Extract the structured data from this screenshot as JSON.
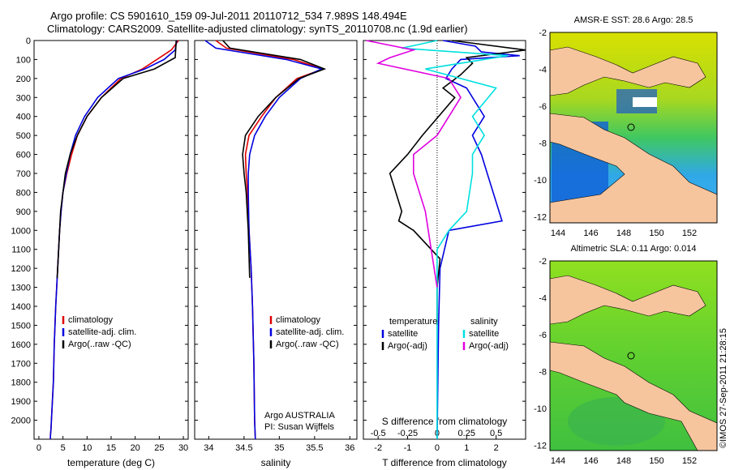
{
  "header": {
    "line1": "Argo profile: CS 5901610_159 09-Jul-2011 20110712_534 7.989S 148.494E",
    "line2": "Climatology: CARS2009. Satellite-adjusted climatology: synTS_20110708.nc (1.9d earlier)"
  },
  "footer": {
    "stamp": "©IMOS 27-Sep-2011 21:28:15"
  },
  "colors": {
    "climatology": "#e00000",
    "satellite": "#0000e0",
    "argo": "#000000",
    "cyan": "#00e0e0",
    "magenta": "#e000e0",
    "land": "#f6c59e"
  },
  "chart_data": [
    {
      "type": "line",
      "xlabel": "temperature (deg C)",
      "xlim": [
        -1,
        31
      ],
      "ylim": [
        2100,
        0
      ],
      "xticks": [
        "0",
        "5",
        "10",
        "15",
        "20",
        "25",
        "30"
      ],
      "yticks": [
        "0",
        "100",
        "200",
        "300",
        "400",
        "500",
        "600",
        "700",
        "800",
        "900",
        "1000",
        "1100",
        "1200",
        "1300",
        "1400",
        "1500",
        "1600",
        "1700",
        "1800",
        "1900",
        "2000"
      ],
      "legend": [
        "climatology",
        "satellite-adj. clim.",
        "Argo(..raw -QC)"
      ],
      "series": [
        {
          "name": "climatology",
          "x": [
            29.0,
            27.5,
            24.5,
            21.5,
            17.0,
            13.0,
            10.0,
            8.0,
            6.8,
            5.8,
            5.0,
            4.6,
            4.3,
            3.9,
            3.5,
            3.2,
            3.0,
            2.8,
            2.6,
            2.5,
            2.4,
            2.4
          ],
          "y": [
            0,
            50,
            100,
            150,
            200,
            300,
            400,
            500,
            600,
            700,
            800,
            900,
            1000,
            1200,
            1400,
            1600,
            1800,
            1900,
            2000,
            2050,
            2080,
            2100
          ]
        },
        {
          "name": "satellite-adj. clim.",
          "x": [
            28.6,
            28.3,
            26.0,
            22.0,
            16.5,
            12.2,
            9.5,
            7.6,
            6.5,
            5.7,
            5.0,
            4.6,
            4.3,
            3.9,
            3.5,
            3.2,
            3.0,
            2.8,
            2.6,
            2.5,
            2.4,
            2.4
          ],
          "y": [
            0,
            50,
            100,
            150,
            200,
            300,
            400,
            500,
            600,
            700,
            800,
            900,
            1000,
            1200,
            1400,
            1600,
            1800,
            1900,
            2000,
            2050,
            2080,
            2100
          ]
        },
        {
          "name": "Argo(..raw -QC)",
          "x": [
            28.5,
            28.4,
            28.3,
            24.0,
            17.5,
            13.0,
            10.0,
            8.0,
            6.5,
            5.5,
            5.0,
            4.5,
            4.3,
            4.1,
            3.8
          ],
          "y": [
            0,
            50,
            90,
            150,
            200,
            300,
            400,
            500,
            600,
            700,
            800,
            900,
            1000,
            1100,
            1250
          ]
        }
      ]
    },
    {
      "type": "line",
      "xlabel": "salinity",
      "xlim": [
        33.8,
        36.1
      ],
      "ylim": [
        2100,
        0
      ],
      "xticks": [
        "34",
        "34.5",
        "35",
        "35.5",
        "36"
      ],
      "legend": [
        "climatology",
        "satellite-adj. clim.",
        "Argo(..raw -QC)"
      ],
      "annotations": [
        "Argo AUSTRALIA",
        "PI: Susan Wijffels"
      ],
      "series": [
        {
          "name": "climatology",
          "x": [
            34.1,
            34.25,
            35.2,
            35.62,
            35.25,
            34.95,
            34.75,
            34.57,
            34.52,
            34.53,
            34.55,
            34.57,
            34.6,
            34.62,
            34.64,
            34.65,
            34.66
          ],
          "y": [
            0,
            40,
            100,
            150,
            200,
            300,
            400,
            500,
            600,
            700,
            800,
            1000,
            1200,
            1400,
            1700,
            2000,
            2100
          ]
        },
        {
          "name": "satellite-adj. clim.",
          "x": [
            33.95,
            34.1,
            35.1,
            35.6,
            35.3,
            35.0,
            34.8,
            34.65,
            34.58,
            34.56,
            34.56,
            34.57,
            34.6,
            34.62,
            34.64,
            34.65,
            34.66
          ],
          "y": [
            0,
            40,
            100,
            150,
            200,
            300,
            400,
            500,
            600,
            700,
            800,
            1000,
            1200,
            1400,
            1700,
            2000,
            2100
          ]
        },
        {
          "name": "Argo(..raw -QC)",
          "x": [
            34.2,
            34.3,
            35.3,
            35.64,
            35.28,
            34.95,
            34.7,
            34.52,
            34.48,
            34.5,
            34.53,
            34.56,
            34.58
          ],
          "y": [
            0,
            40,
            100,
            150,
            200,
            300,
            400,
            500,
            600,
            700,
            800,
            1000,
            1250
          ]
        }
      ]
    },
    {
      "type": "line",
      "xlabel_top": "S difference from climatology",
      "xlabel": "T difference from climatology",
      "xlim": [
        -2.5,
        3.0
      ],
      "ylim": [
        2100,
        0
      ],
      "xticks_top": [
        "-0.5",
        "-0.25",
        "0",
        "0.25",
        "0.5"
      ],
      "xticks": [
        "-2",
        "-1",
        "0",
        "1",
        "2"
      ],
      "legend": [
        "temperature",
        "satellite",
        "Argo(-adj)",
        "salinity",
        "satellite",
        "Argo(-adj)"
      ],
      "series": [
        {
          "name": "satellite",
          "x": [
            0.2,
            1.3,
            1.5,
            2.8,
            0.8,
            0.5,
            0.3,
            1.0,
            1.6,
            1.2,
            1.5,
            1.7,
            2.2,
            0.4,
            0.1,
            0.05,
            0.0
          ],
          "y": [
            0,
            30,
            60,
            80,
            100,
            150,
            200,
            250,
            400,
            500,
            600,
            700,
            950,
            1000,
            1200,
            1500,
            2100
          ]
        },
        {
          "name": "Argo(-adj)",
          "x": [
            0.5,
            3.0,
            1.0,
            1.2,
            0.8,
            0.2,
            0.6,
            -0.5,
            -1.0,
            -1.6,
            -1.4,
            -1.2,
            -1.3,
            -0.8,
            0.1,
            0.0,
            0.0
          ],
          "y": [
            0,
            50,
            90,
            120,
            180,
            250,
            300,
            500,
            600,
            700,
            800,
            900,
            950,
            1000,
            1150,
            1300,
            1500
          ]
        },
        {
          "name": "satellite (salinity)",
          "x": [
            0.0,
            -0.3,
            0.6,
            -0.1,
            0.5,
            0.3,
            0.4,
            0.3,
            0.3,
            0.25,
            0.1,
            0.0,
            0.0,
            0.0
          ],
          "y": [
            0,
            40,
            80,
            150,
            250,
            400,
            500,
            600,
            700,
            900,
            1000,
            1100,
            1500,
            2100
          ]
        },
        {
          "name": "Argo(-adj) (salinity)",
          "x": [
            -0.6,
            -0.2,
            -0.4,
            -0.5,
            0.1,
            0.2,
            0.1,
            0.0,
            -0.2,
            -0.2,
            -0.1,
            -0.05,
            0.0
          ],
          "y": [
            0,
            50,
            90,
            120,
            200,
            300,
            400,
            500,
            600,
            700,
            900,
            1100,
            1300
          ]
        }
      ]
    },
    {
      "type": "heatmap",
      "title": "AMSR-E SST: 28.6 Argo: 28.5",
      "xticks": [
        "144",
        "146",
        "148",
        "150",
        "152"
      ],
      "yticks": [
        "-2",
        "-4",
        "-6",
        "-8",
        "-10",
        "-12"
      ]
    },
    {
      "type": "heatmap",
      "title": "Altimetric SLA: 0.11 Argo: 0.014",
      "xticks": [
        "144",
        "146",
        "148",
        "150",
        "152"
      ],
      "yticks": [
        "-2",
        "-4",
        "-6",
        "-8",
        "-10",
        "-12"
      ]
    }
  ]
}
